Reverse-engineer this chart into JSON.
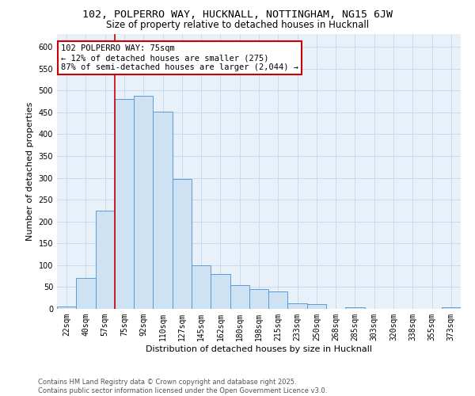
{
  "title1": "102, POLPERRO WAY, HUCKNALL, NOTTINGHAM, NG15 6JW",
  "title2": "Size of property relative to detached houses in Hucknall",
  "xlabel": "Distribution of detached houses by size in Hucknall",
  "ylabel": "Number of detached properties",
  "bar_color": "#cfe2f3",
  "bar_edge_color": "#5b9bd5",
  "grid_color": "#c9daea",
  "bg_color": "#e8f1fa",
  "categories": [
    "22sqm",
    "40sqm",
    "57sqm",
    "75sqm",
    "92sqm",
    "110sqm",
    "127sqm",
    "145sqm",
    "162sqm",
    "180sqm",
    "198sqm",
    "215sqm",
    "233sqm",
    "250sqm",
    "268sqm",
    "285sqm",
    "303sqm",
    "320sqm",
    "338sqm",
    "355sqm",
    "373sqm"
  ],
  "values": [
    5,
    70,
    225,
    480,
    488,
    452,
    297,
    99,
    80,
    54,
    46,
    40,
    12,
    11,
    0,
    4,
    0,
    0,
    0,
    0,
    4
  ],
  "red_line_index": 3,
  "annotation_text": "102 POLPERRO WAY: 75sqm\n← 12% of detached houses are smaller (275)\n87% of semi-detached houses are larger (2,044) →",
  "annotation_box_color": "#ffffff",
  "annotation_border_color": "#cc0000",
  "red_line_color": "#cc0000",
  "ylim": [
    0,
    630
  ],
  "yticks": [
    0,
    50,
    100,
    150,
    200,
    250,
    300,
    350,
    400,
    450,
    500,
    550,
    600
  ],
  "footer_text": "Contains HM Land Registry data © Crown copyright and database right 2025.\nContains public sector information licensed under the Open Government Licence v3.0.",
  "title1_fontsize": 9.5,
  "title2_fontsize": 8.5,
  "xlabel_fontsize": 8,
  "ylabel_fontsize": 8,
  "tick_fontsize": 7,
  "annotation_fontsize": 7.5,
  "footer_fontsize": 6
}
